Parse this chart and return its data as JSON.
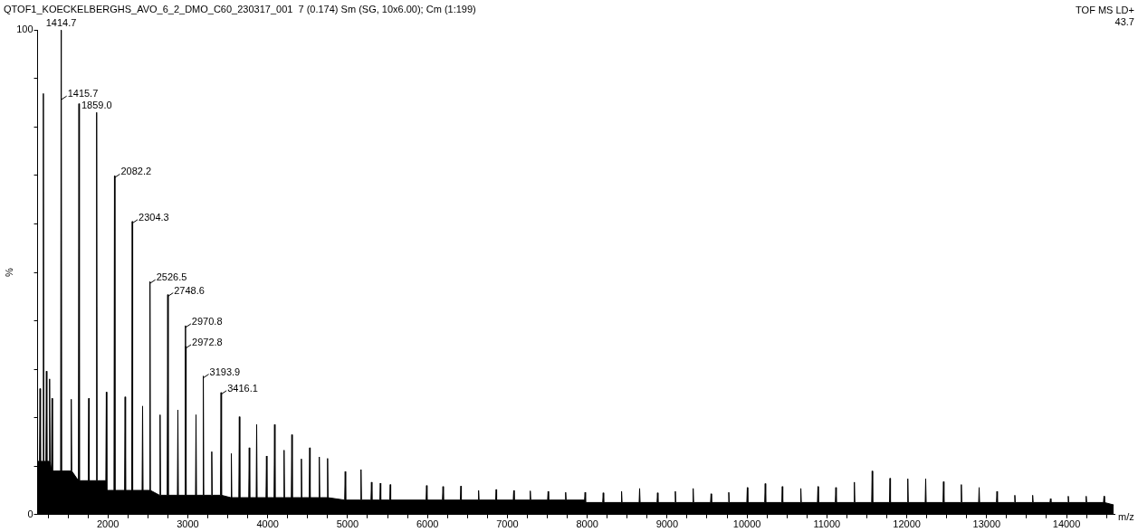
{
  "chart_data": {
    "type": "area",
    "title": "QTOF1_KOECKELBERGHS_AVO_6_2_DMO_C60_230317_001  7 (0.174) Sm (SG, 10x6.00); Cm (1:199)",
    "xlabel": "m/z",
    "ylabel": "%",
    "xlim": [
      1120,
      14600
    ],
    "ylim": [
      0,
      100
    ],
    "xticks": [
      {
        "value": 1250,
        "label": null
      },
      {
        "value": 1500,
        "label": null
      },
      {
        "value": 1750,
        "label": null
      },
      2000,
      {
        "value": 2250,
        "label": null
      },
      {
        "value": 2500,
        "label": null
      },
      {
        "value": 2750,
        "label": null
      },
      3000,
      {
        "value": 3250,
        "label": null
      },
      {
        "value": 3500,
        "label": null
      },
      {
        "value": 3750,
        "label": null
      },
      4000,
      {
        "value": 4250,
        "label": null
      },
      {
        "value": 4500,
        "label": null
      },
      {
        "value": 4750,
        "label": null
      },
      5000,
      {
        "value": 5250,
        "label": null
      },
      {
        "value": 5500,
        "label": null
      },
      {
        "value": 5750,
        "label": null
      },
      6000,
      {
        "value": 6250,
        "label": null
      },
      {
        "value": 6500,
        "label": null
      },
      {
        "value": 6750,
        "label": null
      },
      7000,
      {
        "value": 7250,
        "label": null
      },
      {
        "value": 7500,
        "label": null
      },
      {
        "value": 7750,
        "label": null
      },
      8000,
      {
        "value": 8250,
        "label": null
      },
      {
        "value": 8500,
        "label": null
      },
      {
        "value": 8750,
        "label": null
      },
      9000,
      {
        "value": 9250,
        "label": null
      },
      {
        "value": 9500,
        "label": null
      },
      {
        "value": 9750,
        "label": null
      },
      10000,
      {
        "value": 10250,
        "label": null
      },
      {
        "value": 10500,
        "label": null
      },
      {
        "value": 10750,
        "label": null
      },
      11000,
      {
        "value": 11250,
        "label": null
      },
      {
        "value": 11500,
        "label": null
      },
      {
        "value": 11750,
        "label": null
      },
      12000,
      {
        "value": 12250,
        "label": null
      },
      {
        "value": 12500,
        "label": null
      },
      {
        "value": 12750,
        "label": null
      },
      13000,
      {
        "value": 13250,
        "label": null
      },
      {
        "value": 13500,
        "label": null
      },
      {
        "value": 13750,
        "label": null
      },
      14000,
      {
        "value": 14250,
        "label": null
      },
      {
        "value": 14500,
        "label": null
      }
    ],
    "yticks": [
      0,
      {
        "value": 10,
        "label": null
      },
      {
        "value": 20,
        "label": null
      },
      {
        "value": 30,
        "label": null
      },
      {
        "value": 40,
        "label": null
      },
      {
        "value": 50,
        "label": null
      },
      {
        "value": 60,
        "label": null
      },
      {
        "value": 70,
        "label": null
      },
      {
        "value": 80,
        "label": null
      },
      {
        "value": 90,
        "label": null
      },
      100
    ],
    "series": [
      {
        "color": "#000000",
        "x": [
          1125,
          1144,
          1150,
          1156,
          1186,
          1192,
          1198,
          1224,
          1230,
          1236,
          1264,
          1270,
          1276,
          1294,
          1300,
          1306,
          1408,
          1414.7,
          1415.2,
          1415.7,
          1421,
          1535,
          1541,
          1547,
          1631,
          1637,
          1643,
          1754,
          1760,
          1766,
          1853,
          1859,
          1865,
          1974,
          1980,
          1986,
          2076,
          2082.2,
          2088,
          2209,
          2215,
          2221,
          2298,
          2304.3,
          2310,
          2428,
          2434,
          2440,
          2520,
          2526.5,
          2532,
          2647,
          2653,
          2659,
          2742,
          2748.6,
          2755,
          2870,
          2876,
          2882,
          2964,
          2970.8,
          2971.8,
          2972.8,
          2979,
          3097,
          3103,
          3109,
          3188,
          3193.9,
          3200,
          3294,
          3300,
          3306,
          3410,
          3416.1,
          3422,
          3539,
          3545,
          3551,
          3639,
          3645,
          3651,
          3763,
          3769,
          3775,
          3856,
          3862,
          3868,
          3979,
          3985,
          3991,
          4080,
          4086,
          4092,
          4199,
          4205,
          4211,
          4296,
          4302,
          4308,
          4416,
          4422,
          4428,
          4520,
          4526,
          4532,
          4640,
          4646,
          4652,
          4744,
          4750,
          4756,
          4964,
          4970,
          4976,
          5162,
          5168,
          5174,
          5293,
          5299,
          5305,
          5404,
          5410,
          5416,
          5528,
          5534,
          5540,
          5983,
          5989,
          5995,
          6188,
          6194,
          6200,
          6412,
          6418,
          6424,
          6634,
          6640,
          6646,
          6854,
          6860,
          6866,
          7074,
          7080,
          7086,
          7281,
          7287,
          7293,
          7504,
          7510,
          7516,
          7724,
          7730,
          7736,
          7967,
          7973,
          7979,
          8194,
          8200,
          8206,
          8424,
          8430,
          8436,
          8650,
          8656,
          8662,
          8874,
          8880,
          8886,
          9097,
          9103,
          9109,
          9320,
          9326,
          9332,
          9544,
          9550,
          9556,
          9766,
          9772,
          9778,
          9998,
          10004,
          10010,
          10222,
          10228,
          10234,
          10436,
          10442,
          10448,
          10668,
          10674,
          10680,
          10882,
          10888,
          10894,
          11106,
          11112,
          11118,
          11338,
          11344,
          11350,
          11561,
          11567,
          11573,
          11784,
          11790,
          11796,
          12007,
          12013,
          12019,
          12231,
          12237,
          12243,
          12454,
          12460,
          12466,
          12677,
          12683,
          12689,
          12900,
          12906,
          12912,
          13123,
          13129,
          13135,
          13347,
          13353,
          13359,
          13570,
          13576,
          13582,
          13793,
          13799,
          13805,
          14016,
          14022,
          14028,
          14240,
          14246,
          14252,
          14463,
          14469,
          14475,
          14590
        ],
        "values": [
          11,
          11,
          26,
          11,
          11,
          86.9,
          11,
          11,
          29.6,
          11,
          11,
          28,
          11,
          9,
          24,
          9,
          9,
          100,
          9,
          86,
          9,
          9,
          23.8,
          9,
          7,
          84.8,
          7,
          7,
          24,
          7,
          7,
          83,
          7,
          7,
          25.3,
          5,
          5,
          69.9,
          5,
          5,
          24.3,
          5,
          5,
          60.5,
          5,
          5,
          22.4,
          5,
          5,
          48.1,
          5,
          4,
          20.6,
          4,
          4,
          45.4,
          4,
          4,
          21.6,
          4,
          4,
          39,
          4,
          34.7,
          4,
          4,
          20.6,
          4,
          4,
          28.6,
          4,
          4,
          13,
          4,
          4,
          25.2,
          4,
          3.5,
          12.6,
          3.5,
          3.5,
          20.2,
          3.5,
          3.5,
          13.8,
          3.5,
          3.5,
          18.6,
          3.5,
          3.5,
          12.1,
          3.5,
          3.5,
          18.6,
          3.5,
          3.5,
          13.3,
          3.5,
          3.5,
          16.5,
          3.5,
          3.5,
          11.5,
          3.5,
          3.5,
          13.8,
          3.5,
          3.5,
          11.9,
          3.5,
          3.5,
          11.6,
          3.5,
          3,
          8.9,
          3,
          3,
          9.3,
          3,
          3,
          6.7,
          3,
          3,
          6.5,
          3,
          3,
          6.2,
          3,
          3,
          6,
          3,
          3,
          5.8,
          3,
          3,
          5.9,
          3,
          3,
          5,
          3,
          3,
          5.2,
          3,
          3,
          5,
          3,
          3,
          4.9,
          3,
          3,
          4.8,
          3,
          3,
          4.6,
          3,
          3,
          4.6,
          2.5,
          2.5,
          4.5,
          2.5,
          2.5,
          4.8,
          2.5,
          2.5,
          5.4,
          2.5,
          2.5,
          4.5,
          2.5,
          2.5,
          4.8,
          2.5,
          2.5,
          5.4,
          2.5,
          2.5,
          4.3,
          2.5,
          2.5,
          4.6,
          2.5,
          2.5,
          5.6,
          2.5,
          2.5,
          6.4,
          2.5,
          2.5,
          5.8,
          2.5,
          2.5,
          5.4,
          2.5,
          2.5,
          5.8,
          2.5,
          2.5,
          5.6,
          2.5,
          2.5,
          6.7,
          2.5,
          2.5,
          9,
          2.5,
          2.5,
          7.5,
          2.5,
          2.5,
          7.4,
          2.5,
          2.5,
          7.4,
          2.5,
          2.5,
          6.8,
          2.5,
          2.5,
          6.2,
          2.5,
          2.5,
          5.6,
          2.5,
          2.5,
          4.8,
          2.5,
          2.5,
          4,
          2.5,
          2.5,
          4,
          2.5,
          2.5,
          3.3,
          2.5,
          2.5,
          3.8,
          2.5,
          2.5,
          3.8,
          2.5,
          2.5,
          3.8,
          2.5,
          2
        ]
      }
    ],
    "annotations": [
      "TOF MS LD+",
      "43.7",
      {
        "text": "1414.7",
        "x": 1414.7,
        "y": 100
      },
      {
        "text": "1415.7",
        "x": 1415.7,
        "y": 86
      },
      {
        "text": "1859.0",
        "x": 1859,
        "y": 83
      },
      {
        "text": "2082.2",
        "x": 2082.2,
        "y": 69.9
      },
      {
        "text": "2304.3",
        "x": 2304.3,
        "y": 60.5
      },
      {
        "text": "2526.5",
        "x": 2526.5,
        "y": 48.1
      },
      {
        "text": "2748.6",
        "x": 2748.6,
        "y": 45.4
      },
      {
        "text": "2970.8",
        "x": 2970.8,
        "y": 39
      },
      {
        "text": "2972.8",
        "x": 2972.8,
        "y": 34.7
      },
      {
        "text": "3193.9",
        "x": 3193.9,
        "y": 28.6
      },
      {
        "text": "3416.1",
        "x": 3416.1,
        "y": 25.2
      }
    ]
  }
}
